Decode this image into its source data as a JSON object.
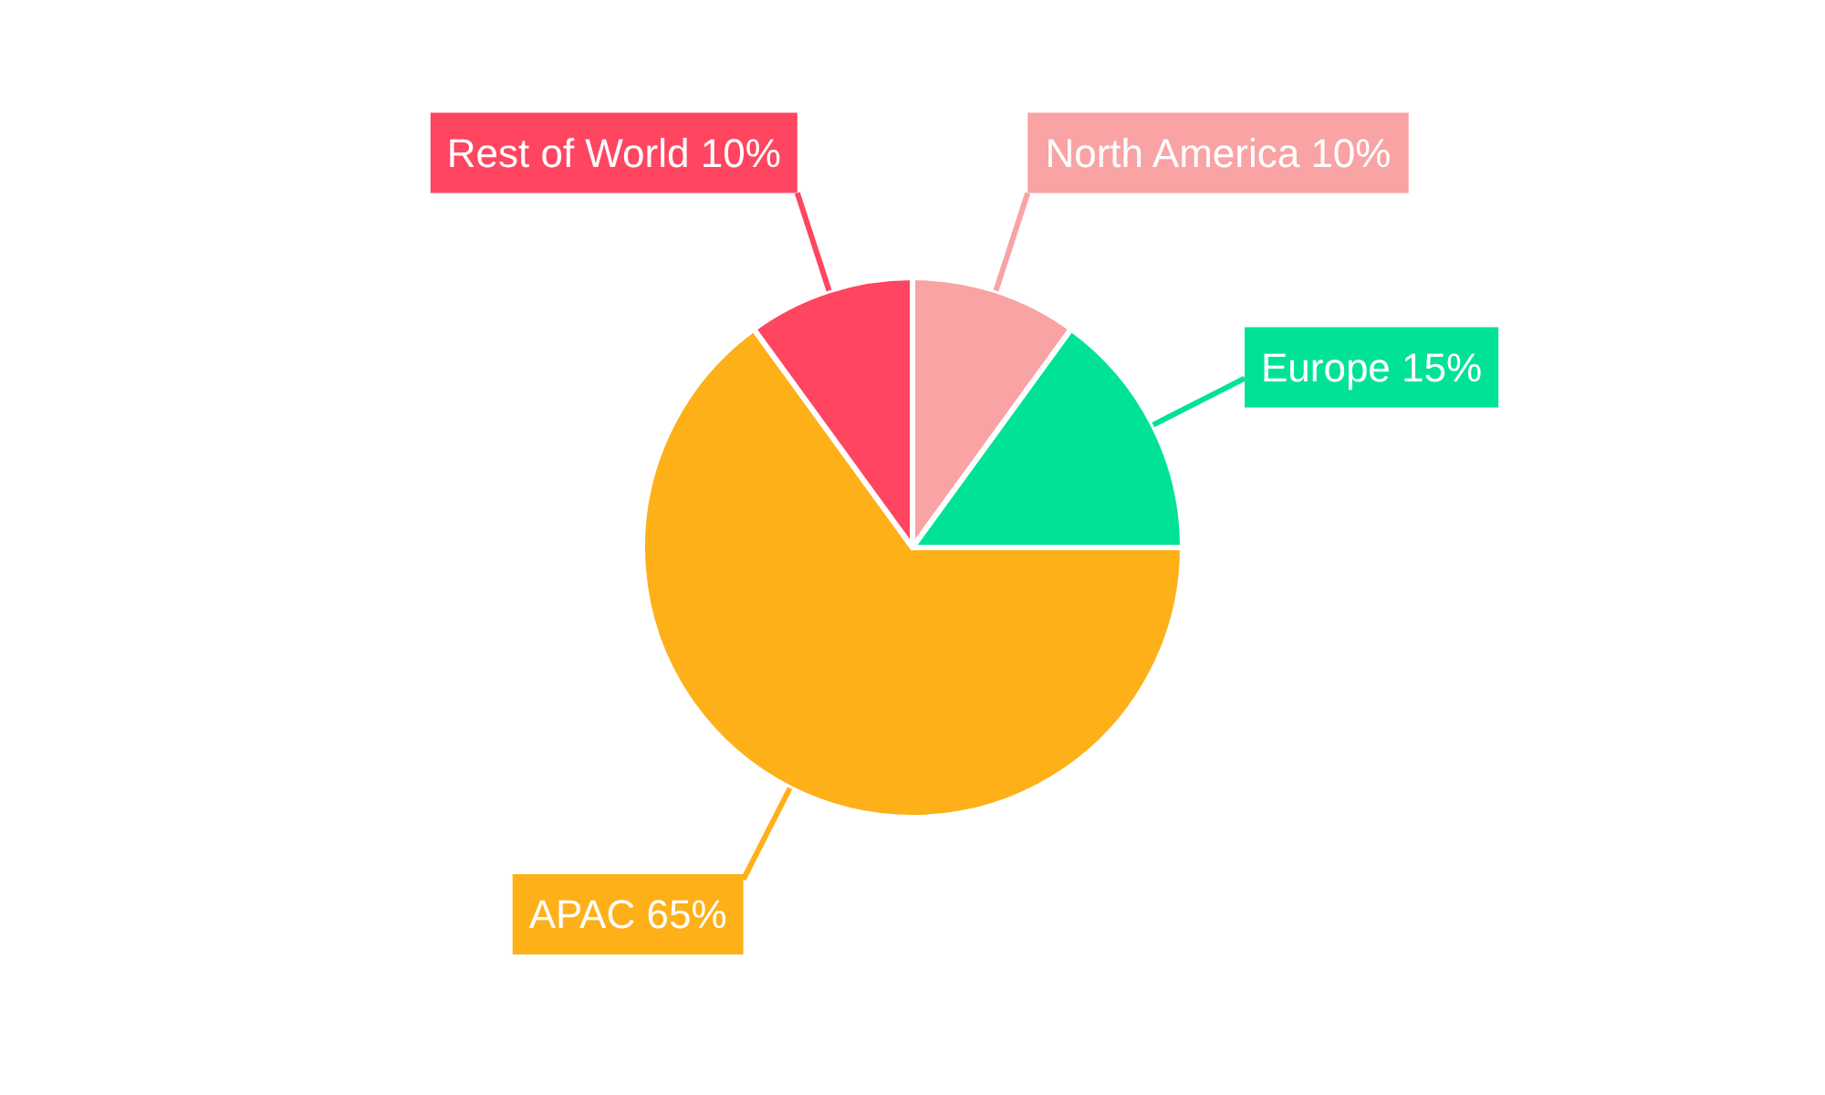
{
  "chart_data": {
    "type": "pie",
    "categories": [
      "North America",
      "Europe",
      "APAC",
      "Rest of World"
    ],
    "values": [
      10,
      15,
      65,
      10
    ],
    "value_labels": [
      "10%",
      "15%",
      "65%",
      "10%"
    ],
    "colors": [
      "#f9a3a4",
      "#00e396",
      "#feb019",
      "#ff4560"
    ]
  }
}
